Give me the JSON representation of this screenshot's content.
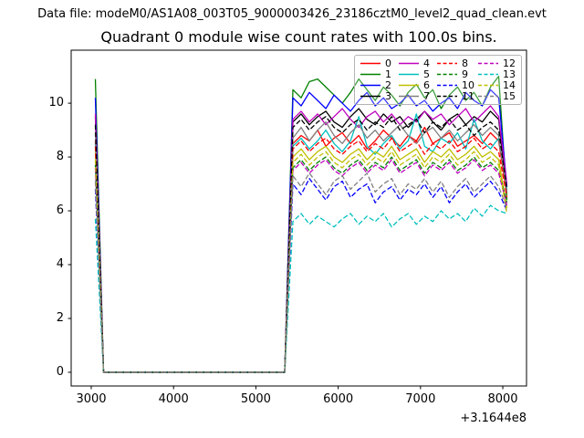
{
  "figure": {
    "data_file_label": "Data file: modeM0/AS1A08_003T05_9000003426_23186cztM0_level2_quad_clean.evt",
    "title": "Quadrant 0 module wise count rates with 100.0s bins.",
    "background_color": "#ffffff",
    "spine_color": "#000000"
  },
  "chart_data": {
    "type": "line",
    "title": "Quadrant 0 module wise count rates with 100.0s bins.",
    "xlabel": "",
    "ylabel": "",
    "x_ticks": [
      3000,
      4000,
      5000,
      6000,
      7000,
      8000
    ],
    "y_ticks": [
      0,
      2,
      4,
      6,
      8,
      10
    ],
    "x_offset_label": "+3.1644e8",
    "xlim": [
      2756,
      8288
    ],
    "ylim": [
      -0.51,
      11.97
    ],
    "grid": false,
    "legend_position": "upper right",
    "legend_columns": 4,
    "bins": {
      "x_start": 3050,
      "x_step": 100,
      "n_zero_bins": 23
    },
    "series": [
      {
        "label": "0",
        "color": "#ff0000",
        "dash": false,
        "y_first": 8.6,
        "plateau": [
          8.5,
          8.8,
          8.6,
          9.0,
          8.4,
          8.7,
          8.9,
          8.5,
          8.8,
          8.3,
          8.6,
          9.0,
          8.7,
          8.4,
          8.8,
          8.6,
          9.1,
          8.5,
          8.7,
          8.9,
          8.4,
          8.6,
          8.8,
          8.5,
          8.9,
          8.6
        ],
        "y_last": 6.6
      },
      {
        "label": "1",
        "color": "#008000",
        "dash": false,
        "y_first": 10.9,
        "plateau": [
          10.5,
          10.2,
          10.8,
          10.9,
          10.6,
          10.3,
          10.0,
          10.4,
          10.9,
          10.5,
          10.1,
          10.6,
          10.3,
          9.9,
          10.4,
          10.7,
          10.2,
          10.5,
          9.8,
          10.3,
          10.6,
          10.1,
          10.4,
          9.9,
          10.6,
          11.0
        ],
        "y_last": 6.4
      },
      {
        "label": "2",
        "color": "#0000ff",
        "dash": false,
        "y_first": 10.2,
        "plateau": [
          10.2,
          9.9,
          10.4,
          10.1,
          9.8,
          10.3,
          10.0,
          9.7,
          10.1,
          10.4,
          9.9,
          10.2,
          9.8,
          10.0,
          10.3,
          9.9,
          10.1,
          9.7,
          10.0,
          10.2,
          9.8,
          10.4,
          10.1,
          9.9,
          10.5,
          10.2
        ],
        "y_last": 6.9
      },
      {
        "label": "3",
        "color": "#000000",
        "dash": false,
        "y_first": 9.5,
        "plateau": [
          9.3,
          9.6,
          9.2,
          9.5,
          9.7,
          9.3,
          9.1,
          9.5,
          9.8,
          9.4,
          9.2,
          9.6,
          9.3,
          9.5,
          9.1,
          9.4,
          9.7,
          9.3,
          9.0,
          9.4,
          9.6,
          9.2,
          9.5,
          9.3,
          9.7,
          9.4
        ],
        "y_last": 6.7
      },
      {
        "label": "4",
        "color": "#bf00bf",
        "dash": false,
        "y_first": 9.6,
        "plateau": [
          9.4,
          9.7,
          9.3,
          9.6,
          9.2,
          9.5,
          9.8,
          9.4,
          9.1,
          9.5,
          9.7,
          9.3,
          9.6,
          9.2,
          9.5,
          9.3,
          9.7,
          9.4,
          9.6,
          9.2,
          9.5,
          9.8,
          9.3,
          9.6,
          9.9,
          9.5
        ],
        "y_last": 7.0
      },
      {
        "label": "5",
        "color": "#00bfbf",
        "dash": false,
        "y_first": 8.5,
        "plateau": [
          8.4,
          8.7,
          8.3,
          8.6,
          9.0,
          8.5,
          8.2,
          8.6,
          9.5,
          8.4,
          8.1,
          8.5,
          8.8,
          8.3,
          8.6,
          9.6,
          8.4,
          8.2,
          8.7,
          8.5,
          8.9,
          8.3,
          9.4,
          8.6,
          8.3,
          8.7
        ],
        "y_last": 6.8
      },
      {
        "label": "6",
        "color": "#bfbf00",
        "dash": false,
        "y_first": 8.2,
        "plateau": [
          8.0,
          8.3,
          7.9,
          8.2,
          8.4,
          8.0,
          7.8,
          8.1,
          8.3,
          7.9,
          8.2,
          8.0,
          8.4,
          7.9,
          8.1,
          8.3,
          7.8,
          8.2,
          8.0,
          8.3,
          7.9,
          8.1,
          8.4,
          8.0,
          8.2,
          7.9
        ],
        "y_last": 6.1
      },
      {
        "label": "7",
        "color": "#808080",
        "dash": false,
        "y_first": 8.9,
        "plateau": [
          8.7,
          9.1,
          8.6,
          9.0,
          9.3,
          8.8,
          8.5,
          8.9,
          9.2,
          8.7,
          9.0,
          8.6,
          8.9,
          9.2,
          8.8,
          8.5,
          8.9,
          9.1,
          8.7,
          9.0,
          8.6,
          8.9,
          9.2,
          8.8,
          9.1,
          8.8
        ],
        "y_last": 6.7
      },
      {
        "label": "8",
        "color": "#ff0000",
        "dash": true,
        "y_first": 8.4,
        "plateau": [
          8.3,
          8.6,
          8.2,
          8.5,
          8.7,
          8.3,
          8.1,
          8.4,
          8.6,
          8.2,
          8.5,
          8.3,
          8.7,
          8.2,
          8.4,
          8.6,
          8.1,
          8.5,
          8.3,
          8.6,
          8.2,
          8.4,
          8.7,
          8.3,
          8.5,
          8.2
        ],
        "y_last": 6.5
      },
      {
        "label": "9",
        "color": "#008000",
        "dash": true,
        "y_first": 7.7,
        "plateau": [
          7.6,
          7.9,
          7.5,
          7.8,
          8.0,
          7.6,
          7.4,
          7.7,
          7.9,
          7.5,
          7.8,
          7.6,
          8.0,
          7.5,
          7.7,
          7.9,
          7.4,
          7.8,
          7.6,
          7.9,
          7.5,
          7.7,
          8.0,
          7.6,
          7.8,
          7.5
        ],
        "y_last": 6.3
      },
      {
        "label": "10",
        "color": "#0000ff",
        "dash": true,
        "y_first": 6.8,
        "plateau": [
          7.0,
          6.6,
          7.2,
          6.8,
          6.4,
          6.9,
          7.1,
          6.5,
          6.8,
          7.0,
          6.3,
          6.7,
          6.9,
          6.4,
          6.8,
          6.6,
          7.0,
          6.5,
          6.9,
          6.3,
          6.7,
          7.0,
          6.5,
          6.8,
          7.1,
          6.7
        ],
        "y_last": 6.0
      },
      {
        "label": "11",
        "color": "#000000",
        "dash": true,
        "y_first": 9.2,
        "plateau": [
          9.1,
          9.4,
          9.0,
          9.3,
          9.5,
          9.1,
          8.9,
          9.2,
          9.4,
          9.0,
          9.3,
          9.1,
          9.5,
          9.0,
          9.2,
          9.4,
          8.9,
          9.3,
          9.1,
          9.4,
          9.0,
          9.2,
          8.8,
          9.1,
          9.3,
          9.0
        ],
        "y_last": 6.8
      },
      {
        "label": "12",
        "color": "#bf00bf",
        "dash": true,
        "y_first": 7.6,
        "plateau": [
          7.5,
          7.8,
          7.4,
          7.7,
          7.9,
          7.5,
          7.3,
          7.6,
          7.8,
          7.4,
          7.7,
          7.5,
          7.9,
          7.4,
          7.6,
          7.8,
          7.3,
          7.7,
          7.5,
          7.8,
          7.4,
          7.6,
          7.9,
          7.5,
          7.7,
          7.4
        ],
        "y_last": 6.2
      },
      {
        "label": "13",
        "color": "#00bfbf",
        "dash": true,
        "y_first": 5.7,
        "plateau": [
          5.6,
          5.9,
          5.5,
          5.8,
          5.6,
          5.4,
          5.7,
          5.9,
          5.5,
          5.8,
          5.6,
          5.9,
          5.4,
          5.7,
          5.9,
          5.5,
          5.8,
          5.6,
          6.0,
          5.7,
          5.9,
          5.6,
          6.1,
          5.8,
          6.2,
          6.0
        ],
        "y_last": 5.9
      },
      {
        "label": "14",
        "color": "#bfbf00",
        "dash": true,
        "y_first": 7.9,
        "plateau": [
          7.8,
          8.1,
          7.7,
          8.0,
          8.2,
          7.8,
          7.6,
          7.9,
          8.1,
          7.7,
          8.0,
          7.8,
          8.2,
          7.7,
          7.9,
          8.1,
          7.6,
          8.0,
          7.8,
          8.1,
          7.7,
          7.9,
          8.2,
          7.8,
          8.0,
          7.7
        ],
        "y_last": 5.9
      },
      {
        "label": "15",
        "color": "#808080",
        "dash": true,
        "y_first": 7.1,
        "plateau": [
          7.3,
          6.9,
          7.4,
          7.0,
          6.6,
          7.1,
          7.3,
          6.8,
          7.1,
          7.4,
          6.7,
          7.0,
          7.2,
          6.6,
          7.0,
          6.8,
          7.2,
          6.7,
          7.1,
          6.5,
          6.9,
          7.2,
          6.7,
          7.0,
          7.3,
          6.9
        ],
        "y_last": 6.1
      }
    ]
  }
}
